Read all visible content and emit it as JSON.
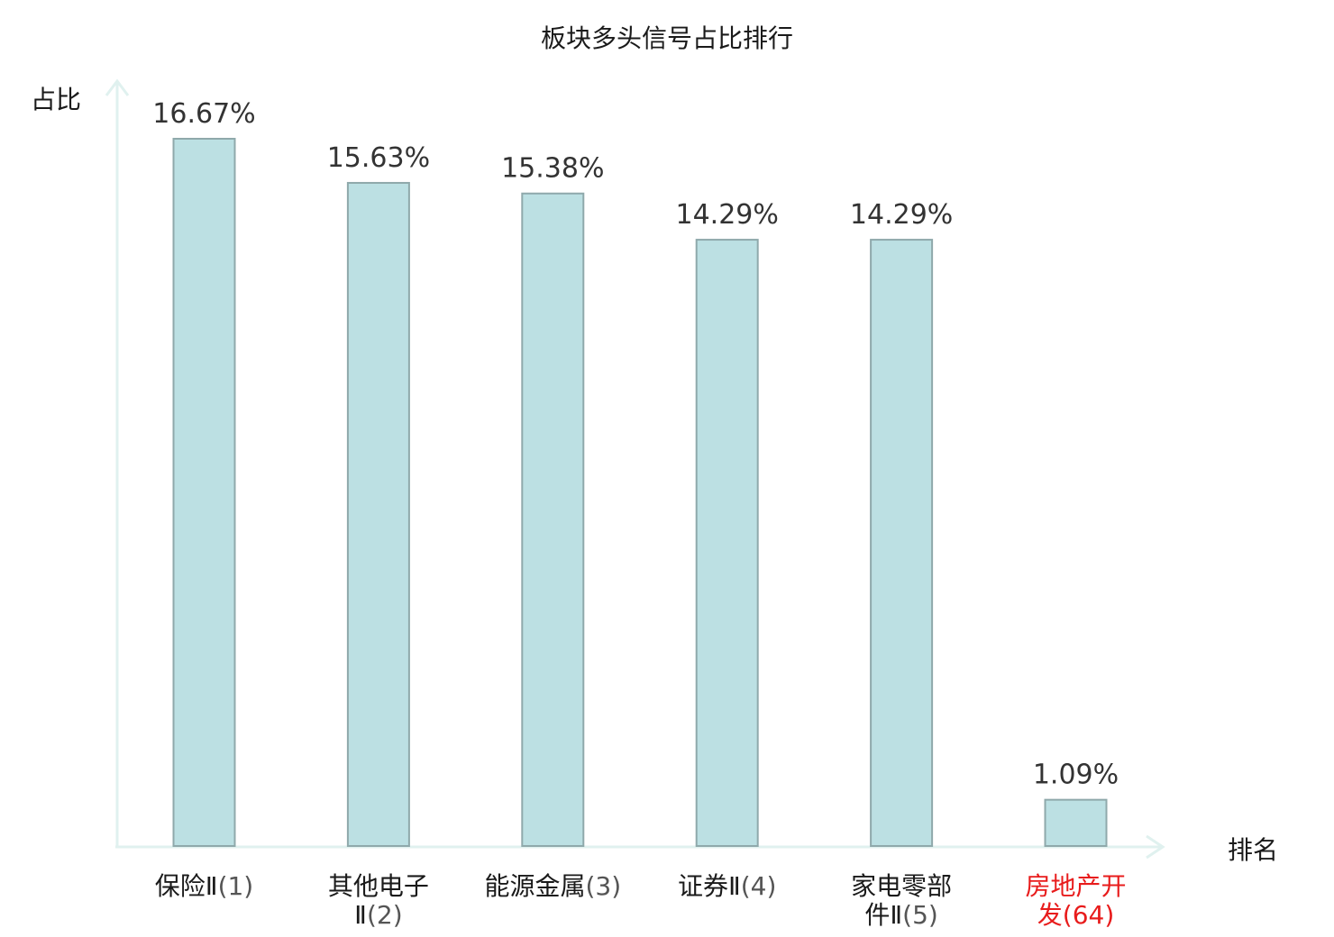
{
  "chart_data": {
    "type": "bar",
    "title": "板块多头信号占比排行",
    "ylabel": "占比",
    "xlabel": "排名",
    "ylim": [
      0,
      17.5
    ],
    "grid": false,
    "categories": [
      {
        "name": [
          "保险Ⅱ"
        ],
        "rank": "(1)",
        "highlight": false
      },
      {
        "name": [
          "其他电子",
          "Ⅱ"
        ],
        "rank": "(2)",
        "highlight": false
      },
      {
        "name": [
          "能源金属"
        ],
        "rank": "(3)",
        "highlight": false
      },
      {
        "name": [
          "证券Ⅱ"
        ],
        "rank": "(4)",
        "highlight": false
      },
      {
        "name": [
          "家电零部",
          "件Ⅱ"
        ],
        "rank": "(5)",
        "highlight": false
      },
      {
        "name": [
          "房地产开",
          "发"
        ],
        "rank": "(64)",
        "highlight": true
      }
    ],
    "values": [
      16.67,
      15.63,
      15.38,
      14.29,
      14.29,
      1.09
    ],
    "value_labels": [
      "16.67%",
      "15.63%",
      "15.38%",
      "14.29%",
      "14.29%",
      "1.09%"
    ]
  },
  "colors": {
    "bar_fill": "#bce0e3",
    "bar_stroke": "#8fa9ab",
    "axis": "#e0f1ef",
    "label_normal": "#1a1a1a",
    "rank_normal": "#555555",
    "highlight": "#e81c1c"
  }
}
